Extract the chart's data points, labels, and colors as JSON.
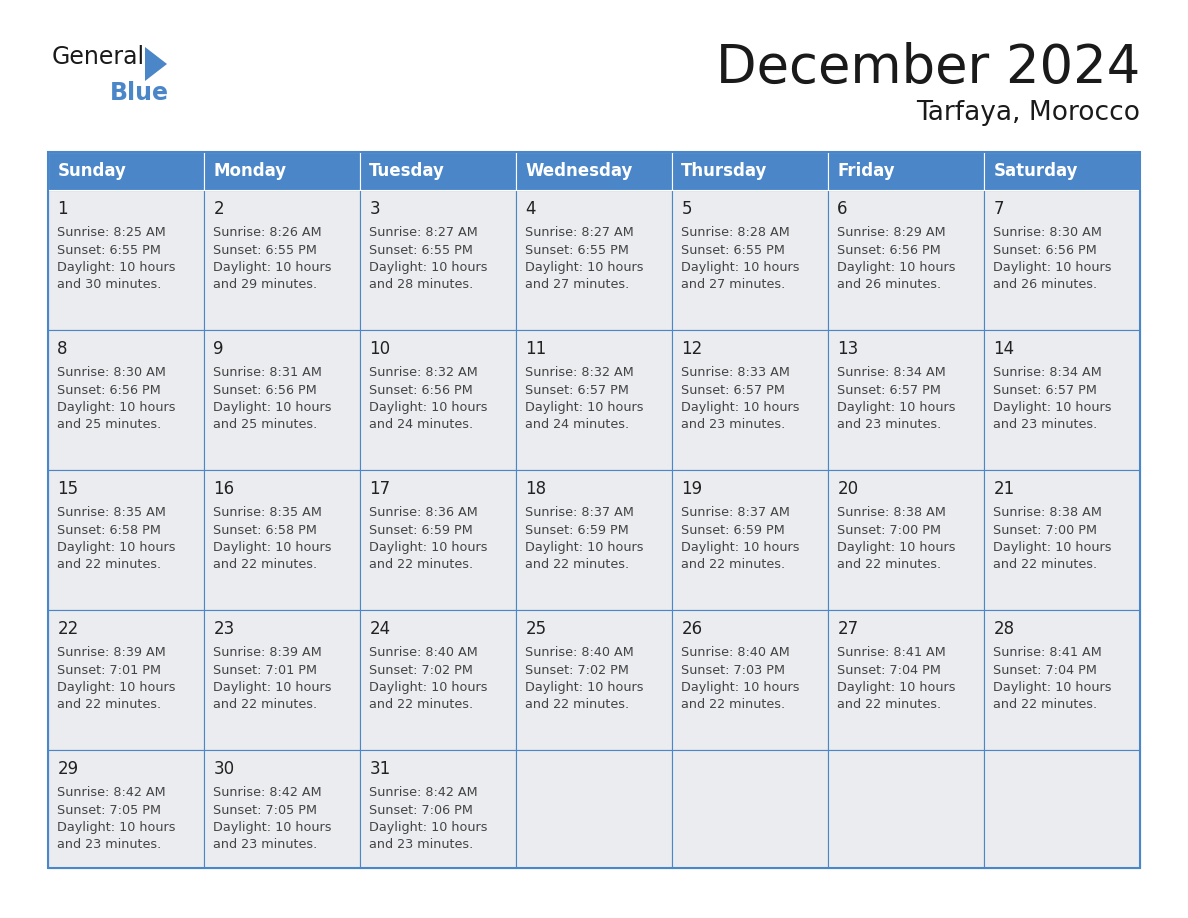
{
  "title": "December 2024",
  "subtitle": "Tarfaya, Morocco",
  "header_bg_color": "#4A86C8",
  "header_text_color": "#FFFFFF",
  "cell_bg_color": "#EAECF0",
  "cell_text_color": "#333333",
  "border_color": "#4A86C8",
  "day_headers": [
    "Sunday",
    "Monday",
    "Tuesday",
    "Wednesday",
    "Thursday",
    "Friday",
    "Saturday"
  ],
  "weeks": [
    [
      {
        "day": 1,
        "sunrise": "8:25 AM",
        "sunset": "6:55 PM",
        "daylight": "10 hours and 30 minutes."
      },
      {
        "day": 2,
        "sunrise": "8:26 AM",
        "sunset": "6:55 PM",
        "daylight": "10 hours and 29 minutes."
      },
      {
        "day": 3,
        "sunrise": "8:27 AM",
        "sunset": "6:55 PM",
        "daylight": "10 hours and 28 minutes."
      },
      {
        "day": 4,
        "sunrise": "8:27 AM",
        "sunset": "6:55 PM",
        "daylight": "10 hours and 27 minutes."
      },
      {
        "day": 5,
        "sunrise": "8:28 AM",
        "sunset": "6:55 PM",
        "daylight": "10 hours and 27 minutes."
      },
      {
        "day": 6,
        "sunrise": "8:29 AM",
        "sunset": "6:56 PM",
        "daylight": "10 hours and 26 minutes."
      },
      {
        "day": 7,
        "sunrise": "8:30 AM",
        "sunset": "6:56 PM",
        "daylight": "10 hours and 26 minutes."
      }
    ],
    [
      {
        "day": 8,
        "sunrise": "8:30 AM",
        "sunset": "6:56 PM",
        "daylight": "10 hours and 25 minutes."
      },
      {
        "day": 9,
        "sunrise": "8:31 AM",
        "sunset": "6:56 PM",
        "daylight": "10 hours and 25 minutes."
      },
      {
        "day": 10,
        "sunrise": "8:32 AM",
        "sunset": "6:56 PM",
        "daylight": "10 hours and 24 minutes."
      },
      {
        "day": 11,
        "sunrise": "8:32 AM",
        "sunset": "6:57 PM",
        "daylight": "10 hours and 24 minutes."
      },
      {
        "day": 12,
        "sunrise": "8:33 AM",
        "sunset": "6:57 PM",
        "daylight": "10 hours and 23 minutes."
      },
      {
        "day": 13,
        "sunrise": "8:34 AM",
        "sunset": "6:57 PM",
        "daylight": "10 hours and 23 minutes."
      },
      {
        "day": 14,
        "sunrise": "8:34 AM",
        "sunset": "6:57 PM",
        "daylight": "10 hours and 23 minutes."
      }
    ],
    [
      {
        "day": 15,
        "sunrise": "8:35 AM",
        "sunset": "6:58 PM",
        "daylight": "10 hours and 22 minutes."
      },
      {
        "day": 16,
        "sunrise": "8:35 AM",
        "sunset": "6:58 PM",
        "daylight": "10 hours and 22 minutes."
      },
      {
        "day": 17,
        "sunrise": "8:36 AM",
        "sunset": "6:59 PM",
        "daylight": "10 hours and 22 minutes."
      },
      {
        "day": 18,
        "sunrise": "8:37 AM",
        "sunset": "6:59 PM",
        "daylight": "10 hours and 22 minutes."
      },
      {
        "day": 19,
        "sunrise": "8:37 AM",
        "sunset": "6:59 PM",
        "daylight": "10 hours and 22 minutes."
      },
      {
        "day": 20,
        "sunrise": "8:38 AM",
        "sunset": "7:00 PM",
        "daylight": "10 hours and 22 minutes."
      },
      {
        "day": 21,
        "sunrise": "8:38 AM",
        "sunset": "7:00 PM",
        "daylight": "10 hours and 22 minutes."
      }
    ],
    [
      {
        "day": 22,
        "sunrise": "8:39 AM",
        "sunset": "7:01 PM",
        "daylight": "10 hours and 22 minutes."
      },
      {
        "day": 23,
        "sunrise": "8:39 AM",
        "sunset": "7:01 PM",
        "daylight": "10 hours and 22 minutes."
      },
      {
        "day": 24,
        "sunrise": "8:40 AM",
        "sunset": "7:02 PM",
        "daylight": "10 hours and 22 minutes."
      },
      {
        "day": 25,
        "sunrise": "8:40 AM",
        "sunset": "7:02 PM",
        "daylight": "10 hours and 22 minutes."
      },
      {
        "day": 26,
        "sunrise": "8:40 AM",
        "sunset": "7:03 PM",
        "daylight": "10 hours and 22 minutes."
      },
      {
        "day": 27,
        "sunrise": "8:41 AM",
        "sunset": "7:04 PM",
        "daylight": "10 hours and 22 minutes."
      },
      {
        "day": 28,
        "sunrise": "8:41 AM",
        "sunset": "7:04 PM",
        "daylight": "10 hours and 22 minutes."
      }
    ],
    [
      {
        "day": 29,
        "sunrise": "8:42 AM",
        "sunset": "7:05 PM",
        "daylight": "10 hours and 23 minutes."
      },
      {
        "day": 30,
        "sunrise": "8:42 AM",
        "sunset": "7:05 PM",
        "daylight": "10 hours and 23 minutes."
      },
      {
        "day": 31,
        "sunrise": "8:42 AM",
        "sunset": "7:06 PM",
        "daylight": "10 hours and 23 minutes."
      },
      null,
      null,
      null,
      null
    ]
  ],
  "title_fontsize": 38,
  "subtitle_fontsize": 19,
  "header_fontsize": 12,
  "day_num_fontsize": 12,
  "cell_fontsize": 9.2
}
